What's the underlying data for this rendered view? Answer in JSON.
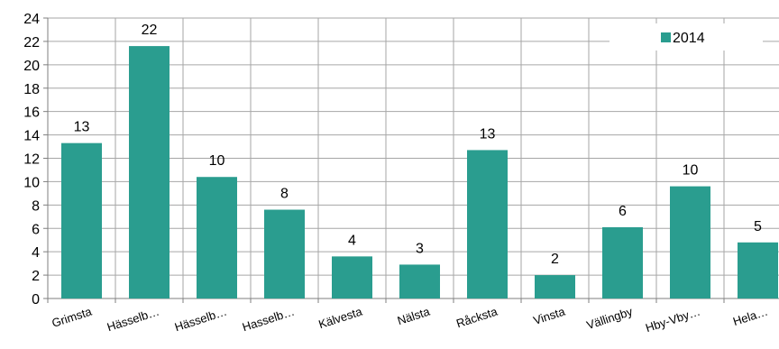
{
  "chart_data": {
    "type": "bar",
    "categories": [
      "Grimsta",
      "Hässelb…",
      "Hässelb…",
      "Hasselb…",
      "Kälvesta",
      "Nälsta",
      "Råcksta",
      "Vinsta",
      "Vällingby",
      "Hby-Vby…",
      "Hela…"
    ],
    "series": [
      {
        "name": "2014",
        "values": [
          13.3,
          21.6,
          10.4,
          7.6,
          3.6,
          2.9,
          12.7,
          2.0,
          6.1,
          9.6,
          4.8
        ],
        "labels": [
          "13",
          "22",
          "10",
          "8",
          "4",
          "3",
          "13",
          "2",
          "6",
          "10",
          "5"
        ]
      }
    ],
    "ylim": [
      0,
      24
    ],
    "yticks": [
      "0",
      "2",
      "4",
      "6",
      "8",
      "10",
      "12",
      "14",
      "16",
      "18",
      "20",
      "22",
      "24"
    ],
    "grid": true,
    "legend_position": "top-right",
    "colors": {
      "bar": "#2a9d8f",
      "grid": "#a6a6a6",
      "axis": "#7f7f7f"
    }
  }
}
